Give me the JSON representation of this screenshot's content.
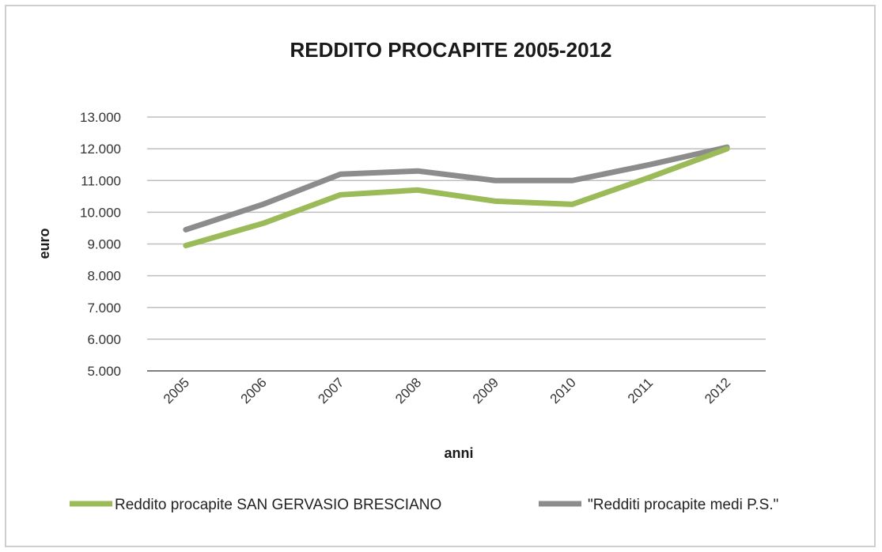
{
  "chart_data": {
    "type": "line",
    "title": "REDDITO PROCAPITE 2005-2012",
    "xlabel": "anni",
    "ylabel": "euro",
    "categories": [
      "2005",
      "2006",
      "2007",
      "2008",
      "2009",
      "2010",
      "2011",
      "2012"
    ],
    "y_ticks": [
      "5.000",
      "6.000",
      "7.000",
      "8.000",
      "9.000",
      "10.000",
      "11.000",
      "12.000",
      "13.000"
    ],
    "ylim": [
      5000,
      13000
    ],
    "grid": true,
    "legend_position": "bottom",
    "series": [
      {
        "name": "Reddito procapite SAN GERVASIO BRESCIANO",
        "color": "#9bbb59",
        "values": [
          8950,
          9650,
          10550,
          10700,
          10350,
          10250,
          11100,
          12000
        ]
      },
      {
        "name": "\"Redditi procapite medi P.S.\"",
        "color": "#8c8c8c",
        "values": [
          9450,
          10250,
          11200,
          11300,
          11000,
          11000,
          11500,
          12050
        ]
      }
    ]
  }
}
